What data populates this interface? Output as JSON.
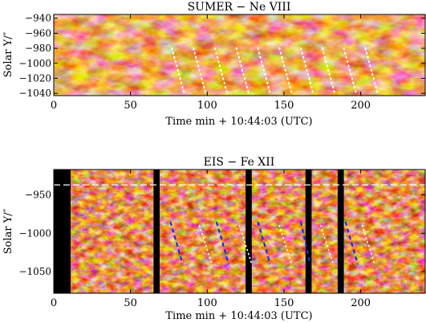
{
  "chart_data": [
    {
      "type": "heatmap",
      "title": "SUMER − Ne VIII",
      "xlabel": "Time min + 10:44:03 (UTC)",
      "ylabel": "Solar Y/″",
      "xlim": [
        0,
        242
      ],
      "ylim": [
        -1043,
        -935
      ],
      "x_ticks": [
        0,
        50,
        100,
        150,
        200
      ],
      "y_ticks": [
        -940,
        -960,
        -980,
        -1000,
        -1020,
        -1040
      ],
      "colormap": [
        "#5a0000",
        "#b22a00",
        "#e06f1f",
        "#ffe2c0"
      ],
      "overlay_lines": {
        "color": "#ffffff",
        "style": "dotted",
        "segments": [
          {
            "x": [
              77,
              85
            ],
            "y": [
              -980,
              -1040
            ]
          },
          {
            "x": [
              91,
              99
            ],
            "y": [
              -980,
              -1040
            ]
          },
          {
            "x": [
              105,
              113
            ],
            "y": [
              -980,
              -1040
            ]
          },
          {
            "x": [
              119,
              127
            ],
            "y": [
              -980,
              -1040
            ]
          },
          {
            "x": [
              133,
              141
            ],
            "y": [
              -980,
              -1040
            ]
          },
          {
            "x": [
              147,
              155
            ],
            "y": [
              -980,
              -1040
            ]
          },
          {
            "x": [
              161,
              169
            ],
            "y": [
              -980,
              -1040
            ]
          },
          {
            "x": [
              175,
              183
            ],
            "y": [
              -980,
              -1040
            ]
          },
          {
            "x": [
              189,
              197
            ],
            "y": [
              -980,
              -1040
            ]
          },
          {
            "x": [
              203,
              211
            ],
            "y": [
              -980,
              -1040
            ]
          }
        ]
      }
    },
    {
      "type": "heatmap",
      "title": "EIS − Fe XII",
      "xlabel": "Time min + 10:44:03 (UTC)",
      "ylabel": "Solar Y/″",
      "xlim": [
        0,
        242
      ],
      "ylim": [
        -1078,
        -917
      ],
      "x_ticks": [
        0,
        50,
        100,
        150,
        200
      ],
      "y_ticks": [
        -950,
        -1000,
        -1050
      ],
      "reference_line": {
        "y": -937,
        "color": "#ffffff",
        "style": "dashed"
      },
      "data_gaps": [
        [
          0,
          11
        ],
        [
          65,
          69
        ],
        [
          125,
          129
        ],
        [
          164,
          168
        ],
        [
          185,
          189
        ]
      ],
      "colormap": [
        "#000000",
        "#6a0a00",
        "#c83c08",
        "#ffdcbe"
      ],
      "overlay_lines": {
        "blue_dashed": [
          {
            "x": [
              76,
              84
            ],
            "y": [
              -985,
              -1040
            ]
          },
          {
            "x": [
              106,
              114
            ],
            "y": [
              -985,
              -1040
            ]
          },
          {
            "x": [
              133,
              141
            ],
            "y": [
              -985,
              -1040
            ]
          },
          {
            "x": [
              161,
              167
            ],
            "y": [
              -985,
              -1040
            ]
          },
          {
            "x": [
              190,
              198
            ],
            "y": [
              -985,
              -1040
            ]
          }
        ],
        "white_dotted": [
          {
            "x": [
              95,
              103
            ],
            "y": [
              -990,
              -1040
            ]
          },
          {
            "x": [
              121,
              129
            ],
            "y": [
              -990,
              -1040
            ]
          },
          {
            "x": [
              147,
              155
            ],
            "y": [
              -990,
              -1040
            ]
          },
          {
            "x": [
              174,
              182
            ],
            "y": [
              -990,
              -1040
            ]
          },
          {
            "x": [
              201,
              209
            ],
            "y": [
              -990,
              -1040
            ]
          }
        ]
      }
    }
  ]
}
